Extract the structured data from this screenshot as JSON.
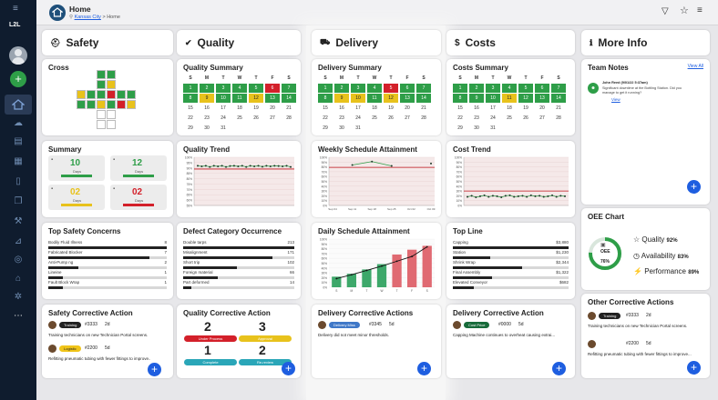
{
  "app": {
    "logo": "L2L",
    "title": "Home",
    "breadcrumb_link": "Kansas City",
    "breadcrumb_sep": ">",
    "breadcrumb_current": "Home"
  },
  "columns": {
    "safety": "Safety",
    "quality": "Quality",
    "delivery": "Delivery",
    "costs": "Costs",
    "more": "More Info"
  },
  "calendar_days": [
    "S",
    "M",
    "T",
    "W",
    "T",
    "F",
    "S"
  ],
  "quality_summary": {
    "title": "Quality Summary",
    "rows": [
      [
        "1",
        "2",
        "3",
        "4",
        "5",
        "6",
        "7"
      ],
      [
        "8",
        "9",
        "10",
        "11",
        "12",
        "13",
        "14"
      ],
      [
        "15",
        "16",
        "17",
        "18",
        "19",
        "20",
        "21"
      ],
      [
        "22",
        "23",
        "24",
        "25",
        "26",
        "27",
        "28"
      ],
      [
        "29",
        "30",
        "31",
        "",
        "",
        "",
        "",
        ""
      ]
    ],
    "statuses": [
      [
        "g",
        "g",
        "g",
        "g",
        "g",
        "r",
        "g"
      ],
      [
        "g",
        "y",
        "g",
        "g",
        "y",
        "g",
        "g"
      ],
      [
        "n",
        "n",
        "n",
        "n",
        "n",
        "n",
        "n"
      ],
      [
        "n",
        "n",
        "n",
        "n",
        "n",
        "n",
        "n"
      ],
      [
        "n",
        "n",
        "n",
        "n",
        "n",
        "n",
        "n"
      ]
    ]
  },
  "delivery_summary": {
    "title": "Delivery Summary",
    "rows": [
      [
        "1",
        "2",
        "3",
        "4",
        "5",
        "6",
        "7"
      ],
      [
        "8",
        "9",
        "10",
        "11",
        "12",
        "13",
        "14"
      ],
      [
        "15",
        "16",
        "17",
        "18",
        "19",
        "20",
        "21"
      ],
      [
        "22",
        "23",
        "24",
        "25",
        "26",
        "27",
        "28"
      ],
      [
        "29",
        "30",
        "31",
        "",
        "",
        "",
        "",
        ""
      ]
    ],
    "statuses": [
      [
        "g",
        "g",
        "g",
        "g",
        "r",
        "g",
        "g"
      ],
      [
        "g",
        "y",
        "y",
        "g",
        "y",
        "g",
        "g"
      ],
      [
        "n",
        "n",
        "n",
        "n",
        "n",
        "n",
        "n"
      ],
      [
        "n",
        "n",
        "n",
        "n",
        "n",
        "n",
        "n"
      ],
      [
        "n",
        "n",
        "n",
        "n",
        "n",
        "n",
        "n"
      ]
    ]
  },
  "costs_summary": {
    "title": "Costs Summary",
    "rows": [
      [
        "1",
        "2",
        "3",
        "4",
        "5",
        "6",
        "7"
      ],
      [
        "8",
        "9",
        "10",
        "11",
        "12",
        "13",
        "14"
      ],
      [
        "15",
        "16",
        "17",
        "18",
        "19",
        "20",
        "21"
      ],
      [
        "22",
        "23",
        "24",
        "25",
        "26",
        "27",
        "28"
      ],
      [
        "29",
        "30",
        "31",
        "",
        "",
        "",
        "",
        ""
      ]
    ],
    "statuses": [
      [
        "g",
        "g",
        "g",
        "g",
        "g",
        "g",
        "g"
      ],
      [
        "g",
        "g",
        "g",
        "y",
        "g",
        "g",
        "g"
      ],
      [
        "n",
        "n",
        "n",
        "n",
        "n",
        "n",
        "n"
      ],
      [
        "n",
        "n",
        "n",
        "n",
        "n",
        "n",
        "n"
      ],
      [
        "n",
        "n",
        "n",
        "n",
        "n",
        "n",
        "n"
      ]
    ]
  },
  "safety": {
    "cross_title": "Cross",
    "summary_title": "Summary",
    "tiles": [
      {
        "value": "10",
        "label": "Days",
        "color": "#2e9e48"
      },
      {
        "value": "12",
        "label": "Days",
        "color": "#2e9e48"
      },
      {
        "value": "02",
        "label": "Days",
        "color": "#e8c21c"
      },
      {
        "value": "02",
        "label": "Days",
        "color": "#d3202a"
      }
    ],
    "concerns_title": "Top Safety Concerns",
    "concerns": [
      {
        "label": "Bodily Fluid Illness",
        "value": "8",
        "pct": 1
      },
      {
        "label": "Fabricated Blocker",
        "value": "7",
        "pct": 0.85
      },
      {
        "label": "Anti-Pump ng",
        "value": "2",
        "pct": 0.25
      },
      {
        "label": "Lineine",
        "value": "1",
        "pct": 0.12
      },
      {
        "label": "Fault Block Wrap",
        "value": "1",
        "pct": 0.12
      }
    ],
    "cap_title": "Safety Corrective Action",
    "cap_pill": "Training",
    "cap_id": "#3333",
    "cap_age": "2d",
    "cap_text": "Training technicians on new Technician Portal screens.",
    "cap2_pill": "Logistic",
    "cap2_id": "#2200",
    "cap2_age": "5d",
    "cap2_text": "Refitting pneumatic tubing with fewer fittings to improve..."
  },
  "quality": {
    "trend_title": "Quality Trend",
    "defect_title": "Defect Category Occurrence",
    "defects": [
      {
        "label": "Double tarps",
        "value": "213",
        "pct": 1
      },
      {
        "label": "Misalignment",
        "value": "171",
        "pct": 0.8
      },
      {
        "label": "Short trip",
        "value": "102",
        "pct": 0.48
      },
      {
        "label": "Foreign material",
        "value": "66",
        "pct": 0.31
      },
      {
        "label": "Part deformed",
        "value": "14",
        "pct": 0.07
      }
    ],
    "cap_title": "Quality Corrective Action",
    "counts": [
      {
        "value": "2",
        "pill": "Under Process",
        "color": "#d3202a"
      },
      {
        "value": "3",
        "pill": "Approval",
        "color": "#e8c21c"
      },
      {
        "value": "1",
        "pill": "Complete",
        "color": "#2aa6b8"
      },
      {
        "value": "2",
        "pill": "Re-review",
        "color": "#2aa6b8"
      }
    ]
  },
  "delivery": {
    "weekly_title": "Weekly Schedule Attainment",
    "daily_title": "Daily Schedule Attainment",
    "cap_title": "Delivery Corrective Actions",
    "cap_pill": "Delivery Miss",
    "cap_id": "#3345",
    "cap_age": "5d",
    "cap_text": "Delivery did not meet minor thresholds."
  },
  "costs": {
    "trend_title": "Cost Trend",
    "topline_title": "Top Line",
    "topline": [
      {
        "label": "Capping",
        "value": "$3,880",
        "pct": 1
      },
      {
        "label": "Station",
        "value": "$1,230",
        "pct": 0.32
      },
      {
        "label": "Shrink Wrap",
        "value": "$2,344",
        "pct": 0.6
      },
      {
        "label": "Final Assembly",
        "value": "$1,322",
        "pct": 0.34
      },
      {
        "label": "Elevated Conveyor",
        "value": "$682",
        "pct": 0.18
      }
    ],
    "cap_title": "Delivery Corrective Action",
    "cap_pill": "Cost Price",
    "cap_id": "#0000",
    "cap_age": "5d",
    "cap_text": "Capping Machine continues to overheat causing extrai..."
  },
  "more": {
    "notes_title": "Team Notes",
    "view_all": "View All",
    "note_author": "John Reed (9/01/22 5:37am)",
    "note_text": "Significant downtime at the Bottling Station. Did you manage to get it running?",
    "note_view": "View",
    "oee_title": "OEE Chart",
    "oee_label": "OEE",
    "oee_value": "76%",
    "quality_label": "Quality",
    "quality_value": "92%",
    "availability_label": "Availability",
    "availability_value": "83%",
    "performance_label": "Performance",
    "performance_value": "89%",
    "other_title": "Other Corrective Actions",
    "o1_pill": "Training",
    "o1_id": "#3333",
    "o1_age": "2d",
    "o1_text": "Training technicians on new Technician Portal screens.",
    "o2_id": "#2200",
    "o2_age": "5d",
    "o2_text": "Refitting pneumatic tubing with fewer fittings to improve..."
  },
  "colors": {
    "rail": "#0f1c2e",
    "accent": "#1e5ee0",
    "green": "#2e9e48",
    "yellow": "#e8c21c",
    "red": "#d3202a"
  },
  "chart_data": [
    {
      "type": "line",
      "title": "Quality Trend",
      "ylim": [
        55,
        100
      ],
      "ytick_labels": [
        "100%",
        "95%",
        "90%",
        "85%",
        "80%",
        "75%",
        "70%",
        "65%",
        "60%",
        "55%"
      ],
      "series": [
        {
          "values": [
            92,
            91.5,
            92,
            91,
            92,
            91.5,
            92,
            91,
            91.8,
            92,
            91.5,
            92,
            91,
            92,
            91.5,
            92,
            91.2,
            92,
            91.5,
            92,
            91.8,
            91.5,
            92,
            91
          ]
        }
      ],
      "target": 89
    },
    {
      "type": "line",
      "title": "Weekly Schedule Attainment",
      "ylim": [
        0,
        100
      ],
      "ytick_labels": [
        "100%",
        "90%",
        "80%",
        "70%",
        "60%",
        "50%",
        "40%",
        "30%",
        "20%",
        "10%",
        "0%"
      ],
      "categories": [
        "Sep 04",
        "Sep 11",
        "Sep 18",
        "Sep 25",
        "Oct 02",
        "Oct 09"
      ],
      "series": [
        {
          "values": [
            null,
            84,
            91,
            82,
            null,
            87
          ]
        }
      ],
      "target": 79
    },
    {
      "type": "bar",
      "title": "Daily Schedule Attainment",
      "ylim": [
        0,
        100
      ],
      "ytick_labels": [
        "100%",
        "90%",
        "80%",
        "70%",
        "60%",
        "50%",
        "40%",
        "30%",
        "20%",
        "10%",
        "0%"
      ],
      "categories": [
        "S",
        "M",
        "T",
        "W",
        "T",
        "F",
        "S"
      ],
      "values": [
        22,
        28,
        37,
        48,
        68,
        78,
        86
      ],
      "cumulative": [
        18,
        26,
        35,
        44,
        54,
        64,
        84
      ]
    },
    {
      "type": "line",
      "title": "Cost Trend",
      "ylim": [
        0,
        100
      ],
      "ytick_labels": [
        "100%",
        "90%",
        "80%",
        "70%",
        "60%",
        "50%",
        "40%",
        "30%",
        "20%",
        "10%",
        "0%"
      ],
      "series": [
        {
          "values": [
            18,
            20,
            17,
            19,
            21,
            18,
            20,
            19,
            17,
            20,
            21,
            18,
            19,
            20,
            18,
            21,
            19,
            20,
            18,
            19,
            21,
            18,
            20,
            19
          ]
        }
      ],
      "target": 30
    }
  ]
}
